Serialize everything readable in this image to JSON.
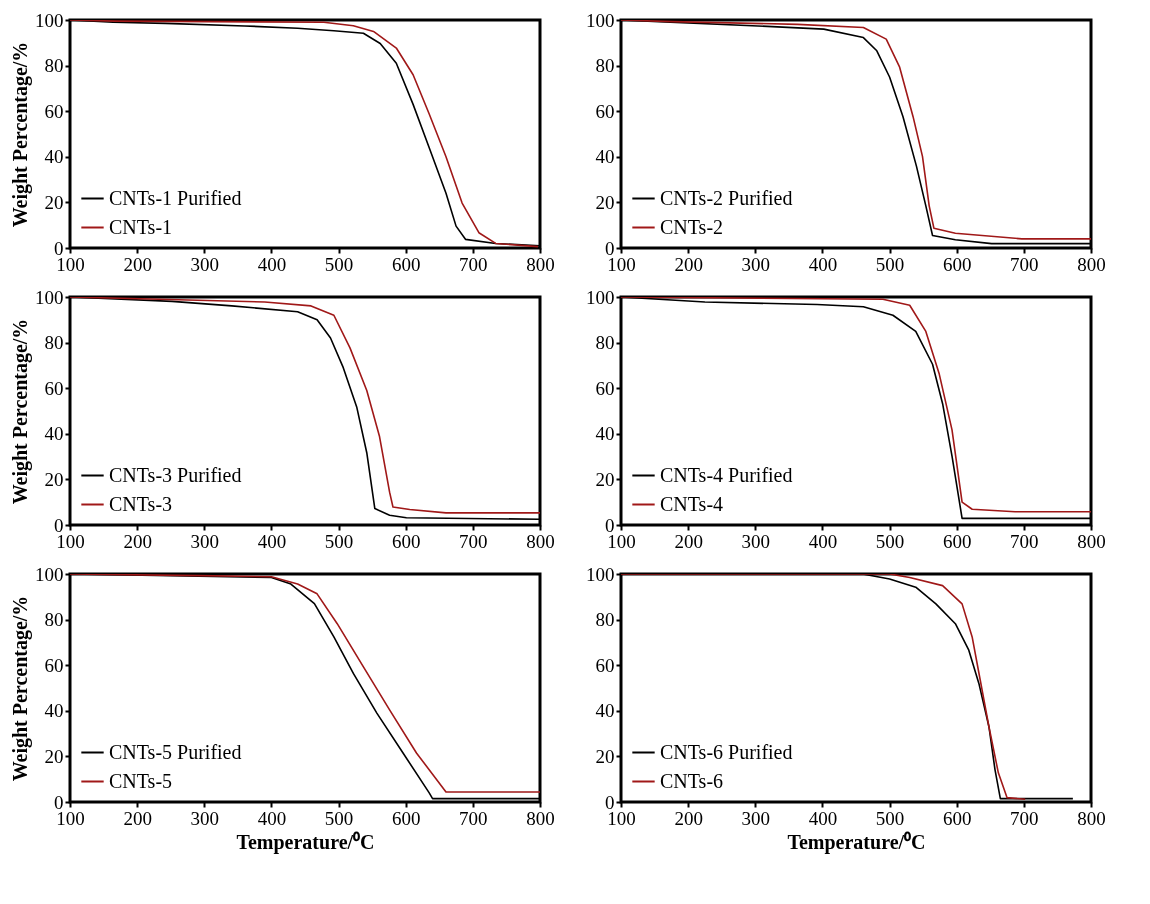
{
  "chart_data": [
    {
      "type": "line",
      "ylabel": "Weight Percentage/%",
      "xlim": [
        100,
        800
      ],
      "ylim": [
        0,
        100
      ],
      "xticks": [
        100,
        200,
        300,
        400,
        500,
        600,
        700,
        800
      ],
      "yticks": [
        0,
        20,
        40,
        60,
        80,
        100
      ],
      "legend": "bottom left",
      "series": [
        {
          "name": "CNTs-1 Purified",
          "color": "#000000",
          "x": [
            100,
            164,
            242,
            360,
            439,
            493,
            537,
            562,
            586,
            611,
            635,
            660,
            675,
            689,
            734,
            800
          ],
          "values": [
            100,
            99,
            98.5,
            97.4,
            96.4,
            95.3,
            94.2,
            89.7,
            81,
            63,
            44,
            24,
            9.6,
            3.8,
            2,
            1
          ]
        },
        {
          "name": "CNTs-1",
          "color": "#a01818",
          "x": [
            100,
            170,
            478,
            522,
            552,
            586,
            611,
            635,
            660,
            684,
            709,
            734,
            797
          ],
          "values": [
            100,
            99.5,
            99,
            97.5,
            95,
            87.7,
            76,
            58.8,
            40,
            19.7,
            6.7,
            2,
            0.6
          ]
        }
      ]
    },
    {
      "type": "line",
      "xlim": [
        100,
        800
      ],
      "ylim": [
        0,
        100
      ],
      "xticks": [
        100,
        200,
        300,
        400,
        500,
        600,
        700,
        800
      ],
      "yticks": [
        0,
        20,
        40,
        60,
        80,
        100
      ],
      "legend": "bottom left",
      "series": [
        {
          "name": "CNTs-2 Purified",
          "color": "#000000",
          "x": [
            100,
            156,
            304,
            402,
            461,
            481,
            500,
            520,
            540,
            554,
            564,
            598,
            652,
            800
          ],
          "values": [
            100,
            99.3,
            97.4,
            96,
            92.3,
            86.5,
            75,
            57.6,
            35.9,
            18.5,
            5.5,
            3.6,
            1.9,
            1.9
          ]
        },
        {
          "name": "CNTs-2",
          "color": "#a01818",
          "x": [
            100,
            176,
            363,
            461,
            495,
            515,
            535,
            549,
            559,
            566,
            598,
            697,
            800
          ],
          "values": [
            100,
            99.3,
            98.1,
            96.7,
            91.6,
            79.3,
            57.6,
            40.2,
            18.5,
            8.7,
            6.5,
            4,
            4
          ]
        }
      ]
    },
    {
      "type": "line",
      "ylabel": "Weight Percentage/%",
      "xlim": [
        100,
        800
      ],
      "ylim": [
        0,
        100
      ],
      "xticks": [
        100,
        200,
        300,
        400,
        500,
        600,
        700,
        800
      ],
      "yticks": [
        0,
        20,
        40,
        60,
        80,
        100
      ],
      "legend": "bottom left",
      "series": [
        {
          "name": "CNTs-3 Purified",
          "color": "#000000",
          "x": [
            100,
            252,
            341,
            439,
            468,
            488,
            507,
            527,
            542,
            554,
            576,
            601,
            800
          ],
          "values": [
            100,
            98.1,
            96.1,
            93.5,
            90,
            82,
            69,
            51.8,
            31.7,
            7.2,
            4.3,
            3.2,
            2.5
          ]
        },
        {
          "name": "CNTs-3",
          "color": "#a01818",
          "x": [
            100,
            390,
            459,
            493,
            517,
            542,
            561,
            576,
            581,
            606,
            660,
            800
          ],
          "values": [
            100,
            97.8,
            96.1,
            92,
            77.7,
            59,
            38.8,
            14.4,
            7.9,
            6.8,
            5.3,
            5.3
          ]
        }
      ]
    },
    {
      "type": "line",
      "xlim": [
        100,
        800
      ],
      "ylim": [
        0,
        100
      ],
      "xticks": [
        100,
        200,
        300,
        400,
        500,
        600,
        700,
        800
      ],
      "yticks": [
        0,
        20,
        40,
        60,
        80,
        100
      ],
      "legend": "bottom left",
      "series": [
        {
          "name": "CNTs-4 Purified",
          "color": "#000000",
          "x": [
            100,
            225,
            392,
            461,
            505,
            539,
            564,
            579,
            593,
            608,
            800
          ],
          "values": [
            100,
            97.8,
            96.7,
            95.7,
            92,
            84.9,
            70.5,
            53.2,
            30.2,
            2.9,
            2.9
          ]
        },
        {
          "name": "CNTs-4",
          "color": "#a01818",
          "x": [
            100,
            490,
            530,
            554,
            574,
            593,
            608,
            623,
            687,
            800
          ],
          "values": [
            100,
            99,
            96.4,
            84.9,
            66.2,
            41.7,
            10,
            6.9,
            5.8,
            5.8
          ]
        }
      ]
    },
    {
      "type": "line",
      "xlabel": "Temperature/⁰C",
      "ylabel": "Weight Percentage/%",
      "xlim": [
        100,
        800
      ],
      "ylim": [
        0,
        100
      ],
      "xticks": [
        100,
        200,
        300,
        400,
        500,
        600,
        700,
        800
      ],
      "yticks": [
        0,
        20,
        40,
        60,
        80,
        100
      ],
      "legend": "bottom left",
      "series": [
        {
          "name": "CNTs-5 Purified",
          "color": "#000000",
          "x": [
            100,
            400,
            429,
            464,
            493,
            522,
            557,
            596,
            635,
            640,
            800
          ],
          "values": [
            100,
            98.5,
            95.6,
            87,
            72.4,
            56.4,
            39,
            21.5,
            4,
            1.5,
            1.5
          ]
        },
        {
          "name": "CNTs-5",
          "color": "#a01818",
          "x": [
            100,
            292,
            400,
            439,
            468,
            498,
            537,
            576,
            616,
            660,
            800
          ],
          "values": [
            100,
            99.3,
            98.8,
            95.6,
            91.3,
            78.2,
            59.3,
            40.4,
            21.5,
            4.4,
            4.4
          ]
        }
      ]
    },
    {
      "type": "line",
      "xlabel": "Temperature/⁰C",
      "xlim": [
        100,
        800
      ],
      "ylim": [
        0,
        100
      ],
      "xticks": [
        100,
        200,
        300,
        400,
        500,
        600,
        700,
        800
      ],
      "yticks": [
        0,
        20,
        40,
        60,
        80,
        100
      ],
      "legend": "bottom left",
      "series": [
        {
          "name": "CNTs-6 Purified",
          "color": "#000000",
          "x": [
            100,
            460,
            500,
            539,
            569,
            598,
            618,
            633,
            648,
            657,
            665,
            773
          ],
          "values": [
            100,
            100,
            97.8,
            94.2,
            86.9,
            78.2,
            66.6,
            52,
            33,
            14.2,
            1.5,
            1.5
          ]
        },
        {
          "name": "CNTs-6",
          "color": "#a01818",
          "x": [
            100,
            500,
            530,
            579,
            608,
            623,
            635,
            648,
            662,
            675,
            702
          ],
          "values": [
            100,
            100,
            98.5,
            94.9,
            86.9,
            72.4,
            53.5,
            33,
            12.8,
            1.9,
            1.2
          ]
        }
      ]
    }
  ]
}
